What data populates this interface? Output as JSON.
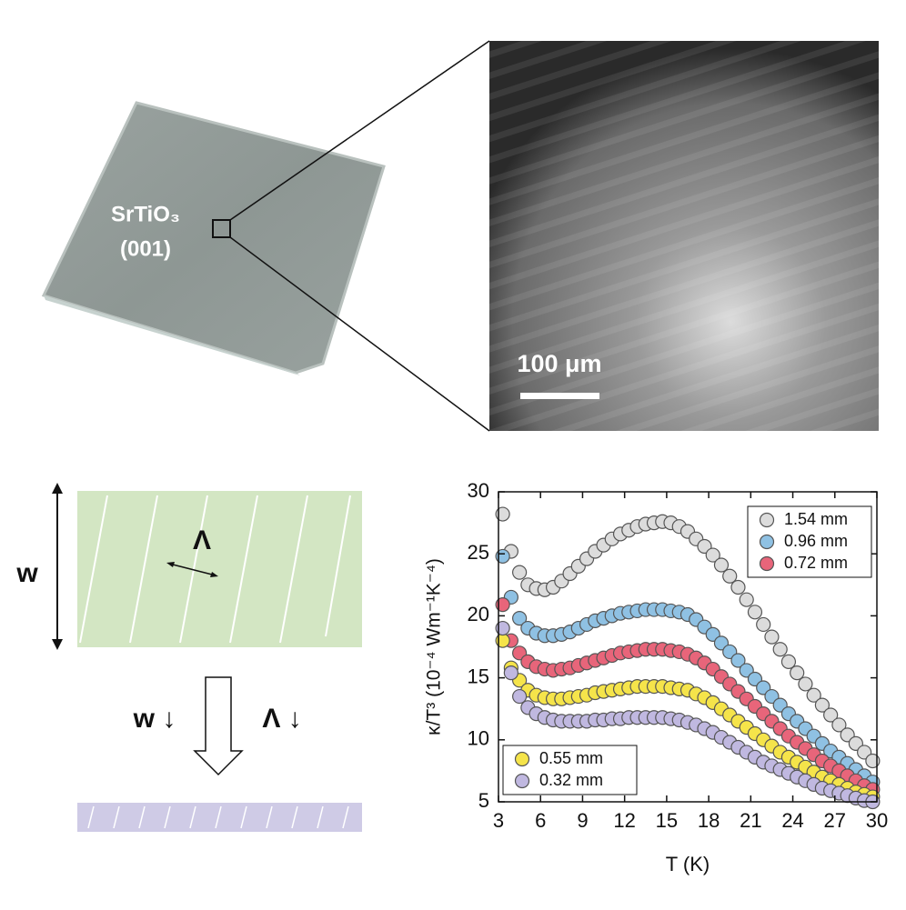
{
  "figure": {
    "sample_label": "SrTiO₃",
    "sample_orientation": "(001)",
    "scale_bar": "100 μm",
    "width_label": "w",
    "period_label": "Λ",
    "width_decrease": "w ↓",
    "period_decrease": "Λ ↓"
  },
  "chart_data": {
    "type": "scatter",
    "x_label": "T (K)",
    "y_label": "κ/T³ (10⁻⁴ Wm⁻¹K⁻⁴)",
    "xlim": [
      3,
      30
    ],
    "ylim": [
      5,
      30
    ],
    "xticks": [
      3,
      6,
      9,
      12,
      15,
      18,
      21,
      24,
      27,
      30
    ],
    "yticks": [
      5,
      10,
      15,
      20,
      25,
      30
    ],
    "x": [
      3.3,
      3.9,
      4.5,
      5.1,
      5.7,
      6.3,
      6.9,
      7.5,
      8.1,
      8.7,
      9.3,
      9.9,
      10.5,
      11.1,
      11.7,
      12.3,
      12.9,
      13.5,
      14.1,
      14.7,
      15.3,
      15.9,
      16.5,
      17.1,
      17.7,
      18.3,
      18.9,
      19.5,
      20.1,
      20.7,
      21.3,
      21.9,
      22.5,
      23.1,
      23.7,
      24.3,
      24.9,
      25.5,
      26.1,
      26.7,
      27.3,
      27.9,
      28.5,
      29.1,
      29.7
    ],
    "series": [
      {
        "name": "1.54 mm",
        "color": "#dcdcdc",
        "legend": "upper right",
        "values": [
          28.2,
          25.2,
          23.5,
          22.5,
          22.2,
          22.1,
          22.3,
          22.8,
          23.4,
          24.0,
          24.6,
          25.2,
          25.7,
          26.2,
          26.6,
          26.9,
          27.2,
          27.4,
          27.5,
          27.6,
          27.5,
          27.2,
          26.8,
          26.2,
          25.6,
          24.9,
          24.1,
          23.2,
          22.3,
          21.3,
          20.3,
          19.3,
          18.3,
          17.3,
          16.3,
          15.4,
          14.5,
          13.6,
          12.8,
          12.0,
          11.2,
          10.4,
          9.7,
          9.0,
          8.3
        ]
      },
      {
        "name": "0.96 mm",
        "color": "#8fc1e3",
        "legend": "upper right",
        "values": [
          24.8,
          21.5,
          19.8,
          19.0,
          18.6,
          18.4,
          18.4,
          18.5,
          18.7,
          19.0,
          19.3,
          19.6,
          19.8,
          20.0,
          20.2,
          20.3,
          20.4,
          20.5,
          20.5,
          20.5,
          20.4,
          20.3,
          20.1,
          19.7,
          19.1,
          18.5,
          17.8,
          17.1,
          16.4,
          15.6,
          14.9,
          14.2,
          13.5,
          12.8,
          12.1,
          11.5,
          10.9,
          10.3,
          9.7,
          9.1,
          8.6,
          8.1,
          7.6,
          7.1,
          6.6
        ]
      },
      {
        "name": "0.72 mm",
        "color": "#e8657a",
        "legend": "upper right",
        "values": [
          20.9,
          18.0,
          17.0,
          16.3,
          15.9,
          15.7,
          15.6,
          15.7,
          15.8,
          16.0,
          16.2,
          16.4,
          16.6,
          16.8,
          17.0,
          17.1,
          17.2,
          17.3,
          17.3,
          17.3,
          17.2,
          17.1,
          16.9,
          16.6,
          16.2,
          15.7,
          15.1,
          14.5,
          13.9,
          13.3,
          12.7,
          12.1,
          11.5,
          10.9,
          10.3,
          9.8,
          9.3,
          8.8,
          8.3,
          7.9,
          7.5,
          7.1,
          6.7,
          6.3,
          6.0
        ]
      },
      {
        "name": "0.55 mm",
        "color": "#f5e44a",
        "legend": "lower left",
        "values": [
          18.0,
          15.8,
          14.8,
          14.0,
          13.6,
          13.4,
          13.3,
          13.3,
          13.4,
          13.5,
          13.6,
          13.8,
          13.9,
          14.0,
          14.1,
          14.2,
          14.3,
          14.3,
          14.3,
          14.3,
          14.2,
          14.1,
          14.0,
          13.7,
          13.4,
          13.0,
          12.5,
          12.0,
          11.5,
          11.0,
          10.5,
          10.0,
          9.5,
          9.0,
          8.6,
          8.2,
          7.8,
          7.4,
          7.0,
          6.7,
          6.4,
          6.1,
          5.8,
          5.6,
          5.4
        ]
      },
      {
        "name": "0.32 mm",
        "color": "#c0b8e0",
        "legend": "lower left",
        "values": [
          19.0,
          15.4,
          13.5,
          12.6,
          12.1,
          11.8,
          11.6,
          11.5,
          11.5,
          11.5,
          11.5,
          11.6,
          11.6,
          11.7,
          11.7,
          11.8,
          11.8,
          11.8,
          11.8,
          11.8,
          11.7,
          11.6,
          11.4,
          11.2,
          10.9,
          10.6,
          10.2,
          9.8,
          9.4,
          9.0,
          8.6,
          8.2,
          7.9,
          7.6,
          7.3,
          7.0,
          6.7,
          6.4,
          6.1,
          5.9,
          5.7,
          5.5,
          5.3,
          5.1,
          5.0
        ]
      }
    ]
  }
}
